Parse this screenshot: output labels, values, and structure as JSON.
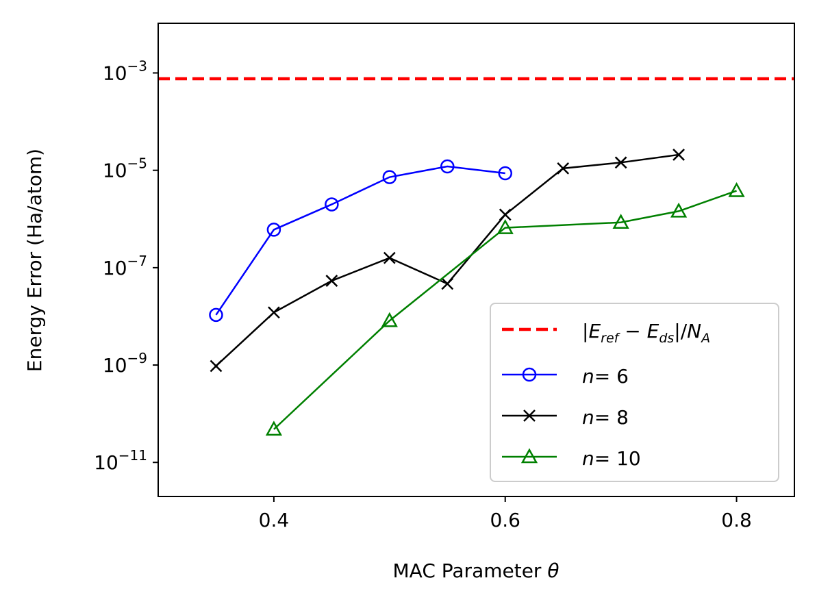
{
  "chart_data": {
    "type": "line",
    "title": "",
    "xlabel": "MAC Parameter",
    "xlabel_symbol": "θ",
    "ylabel": "Energy Error (Ha/atom)",
    "xscale": "linear",
    "yscale": "log",
    "xlim": [
      0.3,
      0.85
    ],
    "ylim_log10": [
      -11.7,
      -1.98
    ],
    "xticks": [
      0.4,
      0.6,
      0.8
    ],
    "xtick_labels": [
      "0.4",
      "0.6",
      "0.8"
    ],
    "yticks_log10": [
      -3,
      -5,
      -7,
      -9,
      -11
    ],
    "ytick_base": "10",
    "ytick_exponents": [
      "−3",
      "−5",
      "−7",
      "−9",
      "−11"
    ],
    "reference_line": {
      "name": "|E_ref − E_ds|/N_A",
      "log10_value": -3.12,
      "color": "#ff0000",
      "style": "dashed"
    },
    "series": [
      {
        "name": "n= 6",
        "legend_var": "n",
        "legend_num": "= 6",
        "color": "#0000ff",
        "marker": "circle",
        "x": [
          0.35,
          0.4,
          0.45,
          0.5,
          0.55,
          0.6
        ],
        "log10_y": [
          -7.97,
          -6.22,
          -5.7,
          -5.14,
          -4.92,
          -5.06
        ]
      },
      {
        "name": "n= 8",
        "legend_var": "n",
        "legend_num": "= 8",
        "color": "#000000",
        "marker": "x",
        "x": [
          0.35,
          0.4,
          0.45,
          0.5,
          0.55,
          0.6,
          0.65,
          0.7,
          0.75
        ],
        "log10_y": [
          -9.02,
          -7.92,
          -7.27,
          -6.8,
          -7.33,
          -5.91,
          -4.96,
          -4.84,
          -4.68
        ]
      },
      {
        "name": "n= 10",
        "legend_var": "n",
        "legend_num": "= 10",
        "color": "#008000",
        "marker": "triangle",
        "x": [
          0.4,
          0.5,
          0.6,
          0.7,
          0.75,
          0.8
        ],
        "log10_y": [
          -10.32,
          -8.09,
          -6.18,
          -6.07,
          -5.84,
          -5.42
        ]
      }
    ],
    "legend": {
      "position": "lower-right",
      "ref_prefix": "|",
      "ref_E1": "E",
      "ref_sub1": "ref",
      "ref_minus": " − ",
      "ref_E2": "E",
      "ref_sub2": "ds",
      "ref_div": "|/",
      "ref_N": "N",
      "ref_subN": "A"
    }
  }
}
